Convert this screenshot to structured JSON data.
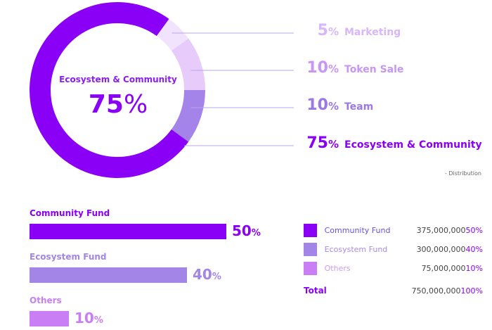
{
  "chart_data": [
    {
      "type": "pie",
      "variant": "donut",
      "title": "Distribution",
      "center": {
        "label": "Ecosystem & Community",
        "value": "75",
        "unit": "%"
      },
      "slices": [
        {
          "label": "Marketing",
          "value": 5,
          "color": "#f1e2fd",
          "text_color": "#d9b6f9"
        },
        {
          "label": "Token Sale",
          "value": 10,
          "color": "#e6cbfb",
          "text_color": "#c995f4"
        },
        {
          "label": "Team",
          "value": 10,
          "color": "#a484e8",
          "text_color": "#9b78e4"
        },
        {
          "label": "Ecosystem & Community",
          "value": 75,
          "color": "#8a00f7",
          "text_color": "#8a00f7"
        }
      ],
      "caption": "- Distribution"
    },
    {
      "type": "bar",
      "orientation": "horizontal",
      "categories": [
        "Community Fund",
        "Ecosystem Fund",
        "Others"
      ],
      "values": [
        50,
        40,
        10
      ],
      "unit": "%",
      "colors": [
        "#8a00f7",
        "#a385e8",
        "#c97ef6"
      ],
      "xlim": [
        0,
        80
      ]
    },
    {
      "type": "table",
      "rows": [
        {
          "name": "Community Fund",
          "amount": "375,000,000",
          "pct": "50%",
          "color": "#8a00f7",
          "text_color": "#6a4fe0"
        },
        {
          "name": "Ecosystem Fund",
          "amount": "300,000,000",
          "pct": "40%",
          "color": "#a385e8",
          "text_color": "#a98be8"
        },
        {
          "name": "Others",
          "amount": "75,000,000",
          "pct": "10%",
          "color": "#c97ef6",
          "text_color": "#cf9cf3"
        }
      ],
      "total": {
        "name": "Total",
        "amount": "750,000,000",
        "pct": "100%"
      }
    }
  ]
}
